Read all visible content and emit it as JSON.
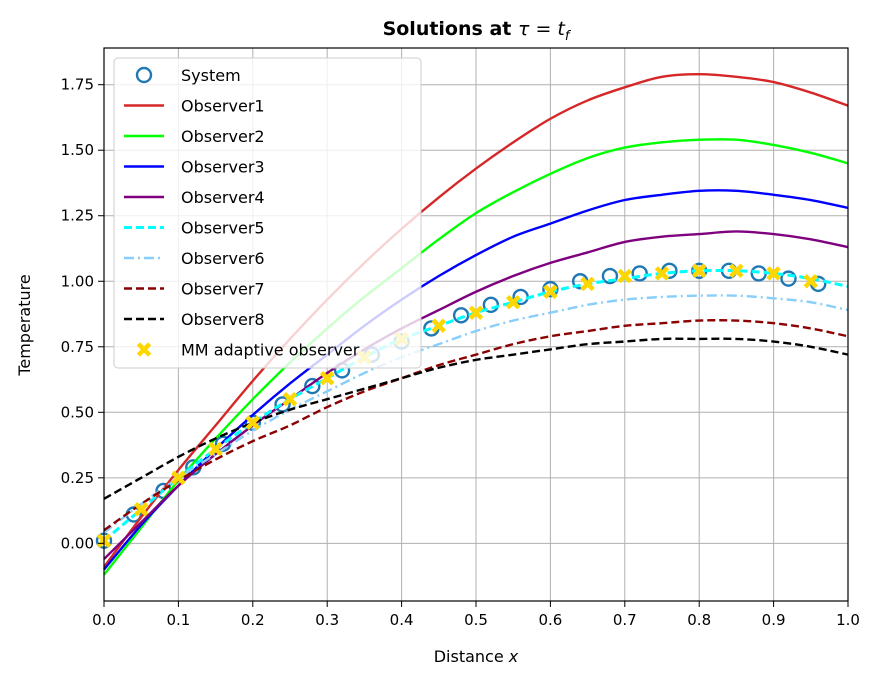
{
  "chart_data": {
    "type": "line",
    "title_prefix": "Solutions at ",
    "title_math": "τ = t",
    "title_sub": "f",
    "xlabel_prefix": "Distance ",
    "xlabel_var": "x",
    "ylabel": "Temperature",
    "xlim": [
      0.0,
      1.0
    ],
    "ylim": [
      -0.22,
      1.89
    ],
    "xticks": [
      0.0,
      0.1,
      0.2,
      0.3,
      0.4,
      0.5,
      0.6,
      0.7,
      0.8,
      0.9,
      1.0
    ],
    "xtick_labels": [
      "0.0",
      "0.1",
      "0.2",
      "0.3",
      "0.4",
      "0.5",
      "0.6",
      "0.7",
      "0.8",
      "0.9",
      "1.0"
    ],
    "yticks": [
      0.0,
      0.25,
      0.5,
      0.75,
      1.0,
      1.25,
      1.5,
      1.75
    ],
    "ytick_labels": [
      "0.00",
      "0.25",
      "0.50",
      "0.75",
      "1.00",
      "1.25",
      "1.50",
      "1.75"
    ],
    "grid": true,
    "legend_position": "top-left",
    "curve_x": [
      0.0,
      0.05,
      0.1,
      0.15,
      0.2,
      0.25,
      0.3,
      0.35,
      0.4,
      0.45,
      0.5,
      0.55,
      0.6,
      0.65,
      0.7,
      0.75,
      0.8,
      0.85,
      0.9,
      0.95,
      1.0
    ],
    "series": [
      {
        "name": "System",
        "style": "markers",
        "marker": "circle-open",
        "color": "#1f77b4",
        "x": [
          0.0,
          0.04,
          0.08,
          0.12,
          0.16,
          0.2,
          0.24,
          0.28,
          0.32,
          0.36,
          0.4,
          0.44,
          0.48,
          0.52,
          0.56,
          0.6,
          0.64,
          0.68,
          0.72,
          0.76,
          0.8,
          0.84,
          0.88,
          0.92,
          0.96
        ],
        "y": [
          0.01,
          0.11,
          0.2,
          0.29,
          0.38,
          0.46,
          0.53,
          0.6,
          0.66,
          0.72,
          0.77,
          0.82,
          0.87,
          0.91,
          0.94,
          0.97,
          1.0,
          1.02,
          1.03,
          1.04,
          1.04,
          1.04,
          1.03,
          1.01,
          0.99
        ]
      },
      {
        "name": "Observer1",
        "style": "solid",
        "color": "#d62728",
        "y": [
          -0.09,
          0.1,
          0.28,
          0.45,
          0.62,
          0.78,
          0.93,
          1.07,
          1.2,
          1.32,
          1.43,
          1.53,
          1.62,
          1.69,
          1.74,
          1.78,
          1.79,
          1.78,
          1.76,
          1.72,
          1.67
        ]
      },
      {
        "name": "Observer2",
        "style": "solid",
        "color": "#00ff00",
        "y": [
          -0.12,
          0.06,
          0.24,
          0.4,
          0.55,
          0.69,
          0.82,
          0.94,
          1.05,
          1.16,
          1.26,
          1.34,
          1.41,
          1.47,
          1.51,
          1.53,
          1.54,
          1.54,
          1.52,
          1.49,
          1.45
        ]
      },
      {
        "name": "Observer3",
        "style": "solid",
        "color": "#0000ff",
        "y": [
          -0.1,
          0.07,
          0.22,
          0.36,
          0.49,
          0.61,
          0.72,
          0.83,
          0.93,
          1.02,
          1.1,
          1.17,
          1.22,
          1.27,
          1.31,
          1.33,
          1.345,
          1.345,
          1.33,
          1.31,
          1.28
        ]
      },
      {
        "name": "Observer4",
        "style": "solid",
        "color": "#7f007f",
        "y": [
          -0.06,
          0.08,
          0.22,
          0.34,
          0.45,
          0.55,
          0.65,
          0.74,
          0.82,
          0.89,
          0.96,
          1.02,
          1.07,
          1.11,
          1.15,
          1.17,
          1.18,
          1.19,
          1.18,
          1.16,
          1.13
        ]
      },
      {
        "name": "Observer5",
        "style": "dashed",
        "color": "#00ffff",
        "y": [
          0.01,
          0.13,
          0.25,
          0.36,
          0.46,
          0.55,
          0.63,
          0.71,
          0.78,
          0.83,
          0.88,
          0.92,
          0.96,
          0.99,
          1.01,
          1.03,
          1.04,
          1.04,
          1.03,
          1.01,
          0.98
        ]
      },
      {
        "name": "Observer6",
        "style": "dashdot",
        "color": "#87cefa",
        "y": [
          0.04,
          0.15,
          0.25,
          0.34,
          0.43,
          0.51,
          0.58,
          0.65,
          0.71,
          0.76,
          0.81,
          0.85,
          0.88,
          0.91,
          0.93,
          0.94,
          0.945,
          0.945,
          0.935,
          0.92,
          0.89
        ]
      },
      {
        "name": "Observer7",
        "style": "dashed",
        "color": "#8b0000",
        "y": [
          0.05,
          0.15,
          0.24,
          0.32,
          0.39,
          0.45,
          0.52,
          0.58,
          0.63,
          0.68,
          0.72,
          0.76,
          0.79,
          0.81,
          0.83,
          0.84,
          0.85,
          0.85,
          0.84,
          0.82,
          0.79
        ]
      },
      {
        "name": "Observer8",
        "style": "dashed",
        "color": "#000000",
        "y": [
          0.17,
          0.25,
          0.33,
          0.4,
          0.46,
          0.51,
          0.55,
          0.59,
          0.63,
          0.67,
          0.7,
          0.72,
          0.74,
          0.76,
          0.77,
          0.78,
          0.78,
          0.78,
          0.77,
          0.75,
          0.72
        ]
      },
      {
        "name": "MM adaptive observer",
        "style": "markers",
        "marker": "x-filled",
        "color": "#ffd700",
        "x": [
          0.0,
          0.05,
          0.1,
          0.15,
          0.2,
          0.25,
          0.3,
          0.35,
          0.4,
          0.45,
          0.5,
          0.55,
          0.6,
          0.65,
          0.7,
          0.75,
          0.8,
          0.85,
          0.9,
          0.95
        ],
        "y": [
          0.01,
          0.13,
          0.25,
          0.36,
          0.46,
          0.55,
          0.63,
          0.71,
          0.78,
          0.83,
          0.88,
          0.92,
          0.96,
          0.99,
          1.02,
          1.03,
          1.04,
          1.04,
          1.03,
          1.0
        ]
      }
    ]
  }
}
